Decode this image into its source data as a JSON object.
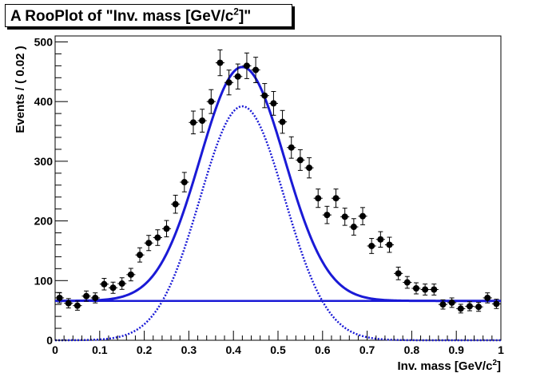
{
  "chart_data": {
    "type": "scatter",
    "title_prefix": "A RooPlot of \"Inv. mass [GeV/c",
    "title_sup": "2",
    "title_suffix": "]\"",
    "xlabel_prefix": "Inv. mass [GeV/c",
    "xlabel_sup": "2",
    "xlabel_suffix": "]",
    "ylabel": "Events / ( 0.02 )",
    "xlim": [
      0,
      1
    ],
    "ylim": [
      0,
      510
    ],
    "x_ticks": [
      "0",
      "0.1",
      "0.2",
      "0.3",
      "0.4",
      "0.5",
      "0.6",
      "0.7",
      "0.8",
      "0.9",
      "1"
    ],
    "y_ticks": [
      "0",
      "100",
      "200",
      "300",
      "400",
      "500"
    ],
    "bin_width": 0.02,
    "grid": false,
    "legend": "none",
    "series": [
      {
        "kind": "data-points",
        "x": [
          0.01,
          0.03,
          0.05,
          0.07,
          0.09,
          0.11,
          0.13,
          0.15,
          0.17,
          0.19,
          0.21,
          0.23,
          0.25,
          0.27,
          0.29,
          0.31,
          0.33,
          0.35,
          0.37,
          0.39,
          0.41,
          0.43,
          0.45,
          0.47,
          0.49,
          0.51,
          0.53,
          0.55,
          0.57,
          0.59,
          0.61,
          0.63,
          0.65,
          0.67,
          0.69,
          0.71,
          0.73,
          0.75,
          0.77,
          0.79,
          0.81,
          0.83,
          0.85,
          0.87,
          0.89,
          0.91,
          0.93,
          0.95,
          0.97,
          0.99
        ],
        "y": [
          71,
          62,
          58,
          74,
          71,
          94,
          88,
          95,
          110,
          143,
          163,
          172,
          187,
          228,
          265,
          365,
          368,
          400,
          465,
          432,
          442,
          460,
          453,
          410,
          397,
          366,
          323,
          302,
          289,
          238,
          210,
          238,
          207,
          190,
          208,
          158,
          169,
          160,
          112,
          97,
          87,
          85,
          85,
          60,
          63,
          53,
          57,
          56,
          71,
          61
        ]
      },
      {
        "kind": "total-fit",
        "color": "#1a1ad6",
        "style": "solid",
        "background": 66,
        "mean": 0.42,
        "sigma": 0.095,
        "amplitude": 392
      },
      {
        "kind": "signal-component",
        "color": "#1a1ad6",
        "style": "dotted",
        "mean": 0.42,
        "sigma": 0.095,
        "amplitude": 392
      },
      {
        "kind": "background-component",
        "color": "#1a1ad6",
        "style": "solid",
        "value": 66
      }
    ]
  }
}
